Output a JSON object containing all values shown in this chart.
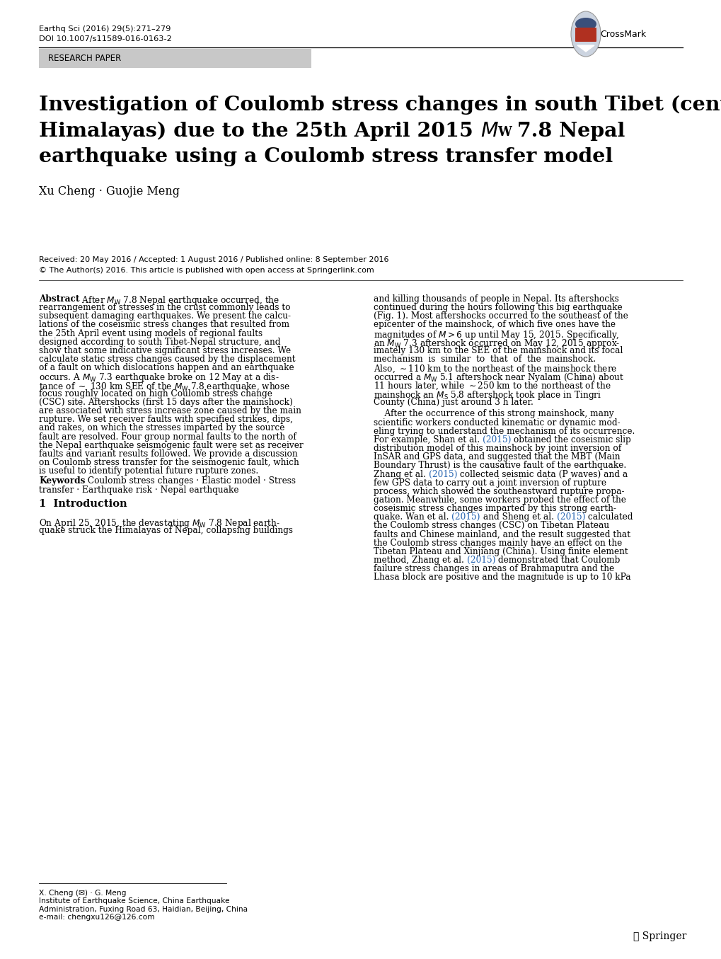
{
  "journal_line1": "Earthq Sci (2016) 29(5):271–279",
  "journal_line2": "DOI 10.1007/s11589-016-0163-2",
  "section_label": "RESEARCH PAPER",
  "title_line1": "Investigation of Coulomb stress changes in south Tibet (central",
  "title_line2_pre": "Himalayas) due to the 25th April 2015 ",
  "title_line2_post": " 7.8 Nepal",
  "title_line3": "earthquake using a Coulomb stress transfer model",
  "authors": "Xu Cheng · Guojie Meng",
  "received": "Received: 20 May 2016 / Accepted: 1 August 2016 / Published online: 8 September 2016",
  "copyright": "© The Author(s) 2016. This article is published with open access at Springerlink.com",
  "footnote_line1": "X. Cheng (✉) · G. Meng",
  "footnote_line2": "Institute of Earthquake Science, China Earthquake",
  "footnote_line3": "Administration, Fuxing Road 63, Haidian, Beijing, China",
  "footnote_line4": "e-mail: chengxu126@126.com",
  "springer_text": "ℒ Springer",
  "bg_color": "#ffffff",
  "gray_bar_color": "#c8c8c8",
  "text_color": "#000000",
  "blue_link_color": "#2563b0",
  "abs_lines_left": [
    "rearrangement of stresses in the crust commonly leads to",
    "subsequent damaging earthquakes. We present the calcu-",
    "lations of the coseismic stress changes that resulted from",
    "the 25th April event using models of regional faults",
    "designed according to south Tibet-Nepal structure, and",
    "show that some indicative significant stress increases. We",
    "calculate static stress changes caused by the displacement",
    "of a fault on which dislocations happen and an earthquake",
    "focus roughly located on high Coulomb stress change",
    "(CSC) site. Aftershocks (first 15 days after the mainshock)",
    "are associated with stress increase zone caused by the main",
    "rupture. We set receiver faults with specified strikes, dips,",
    "and rakes, on which the stresses imparted by the source",
    "fault are resolved. Four group normal faults to the north of",
    "the Nepal earthquake seismogenic fault were set as receiver",
    "faults and variant results followed. We provide a discussion",
    "on Coulomb stress transfer for the seismogenic fault, which",
    "is useful to identify potential future rupture zones."
  ],
  "col2_lines": [
    "and killing thousands of people in Nepal. Its aftershocks",
    "continued during the hours following this big earthquake",
    "(Fig. 1). Most aftershocks occurred to the southeast of the",
    "epicenter of the mainshock, of which five ones have the",
    "magnitudes of $M > 6$ up until May 15, 2015. Specifically,",
    "imately 130 km to the SEE of the mainshock and its focal",
    "mechanism  is  similar  to  that  of  the  mainshock.",
    "Also, ∼110 km to the northeast of the mainshock there",
    "11 hours later, while ∼250 km to the northeast of the",
    "County (China) just around 3 h later.",
    "",
    "    After the occurrence of this strong mainshock, many",
    "scientific workers conducted kinematic or dynamic mod-",
    "eling trying to understand the mechanism of its occurrence.",
    "distribution model of this mainshock by joint inversion of",
    "InSAR and GPS data, and suggested that the MBT (Main",
    "Boundary Thrust) is the causative fault of the earthquake.",
    "few GPS data to carry out a joint inversion of rupture",
    "process, which showed the southeastward rupture propa-",
    "gation. Meanwhile, some workers probed the effect of the",
    "coseismic stress changes imparted by this strong earth-",
    "the Coulomb stress changes (CSC) on Tibetan Plateau",
    "faults and Chinese mainland, and the result suggested that",
    "the Coulomb stress changes mainly have an effect on the",
    "Tibetan Plateau and Xinjiang (China). Using finite element",
    "failure stress changes in areas of Brahmaputra and the",
    "Lhasa block are positive and the magnitude is up to 10 kPa"
  ]
}
